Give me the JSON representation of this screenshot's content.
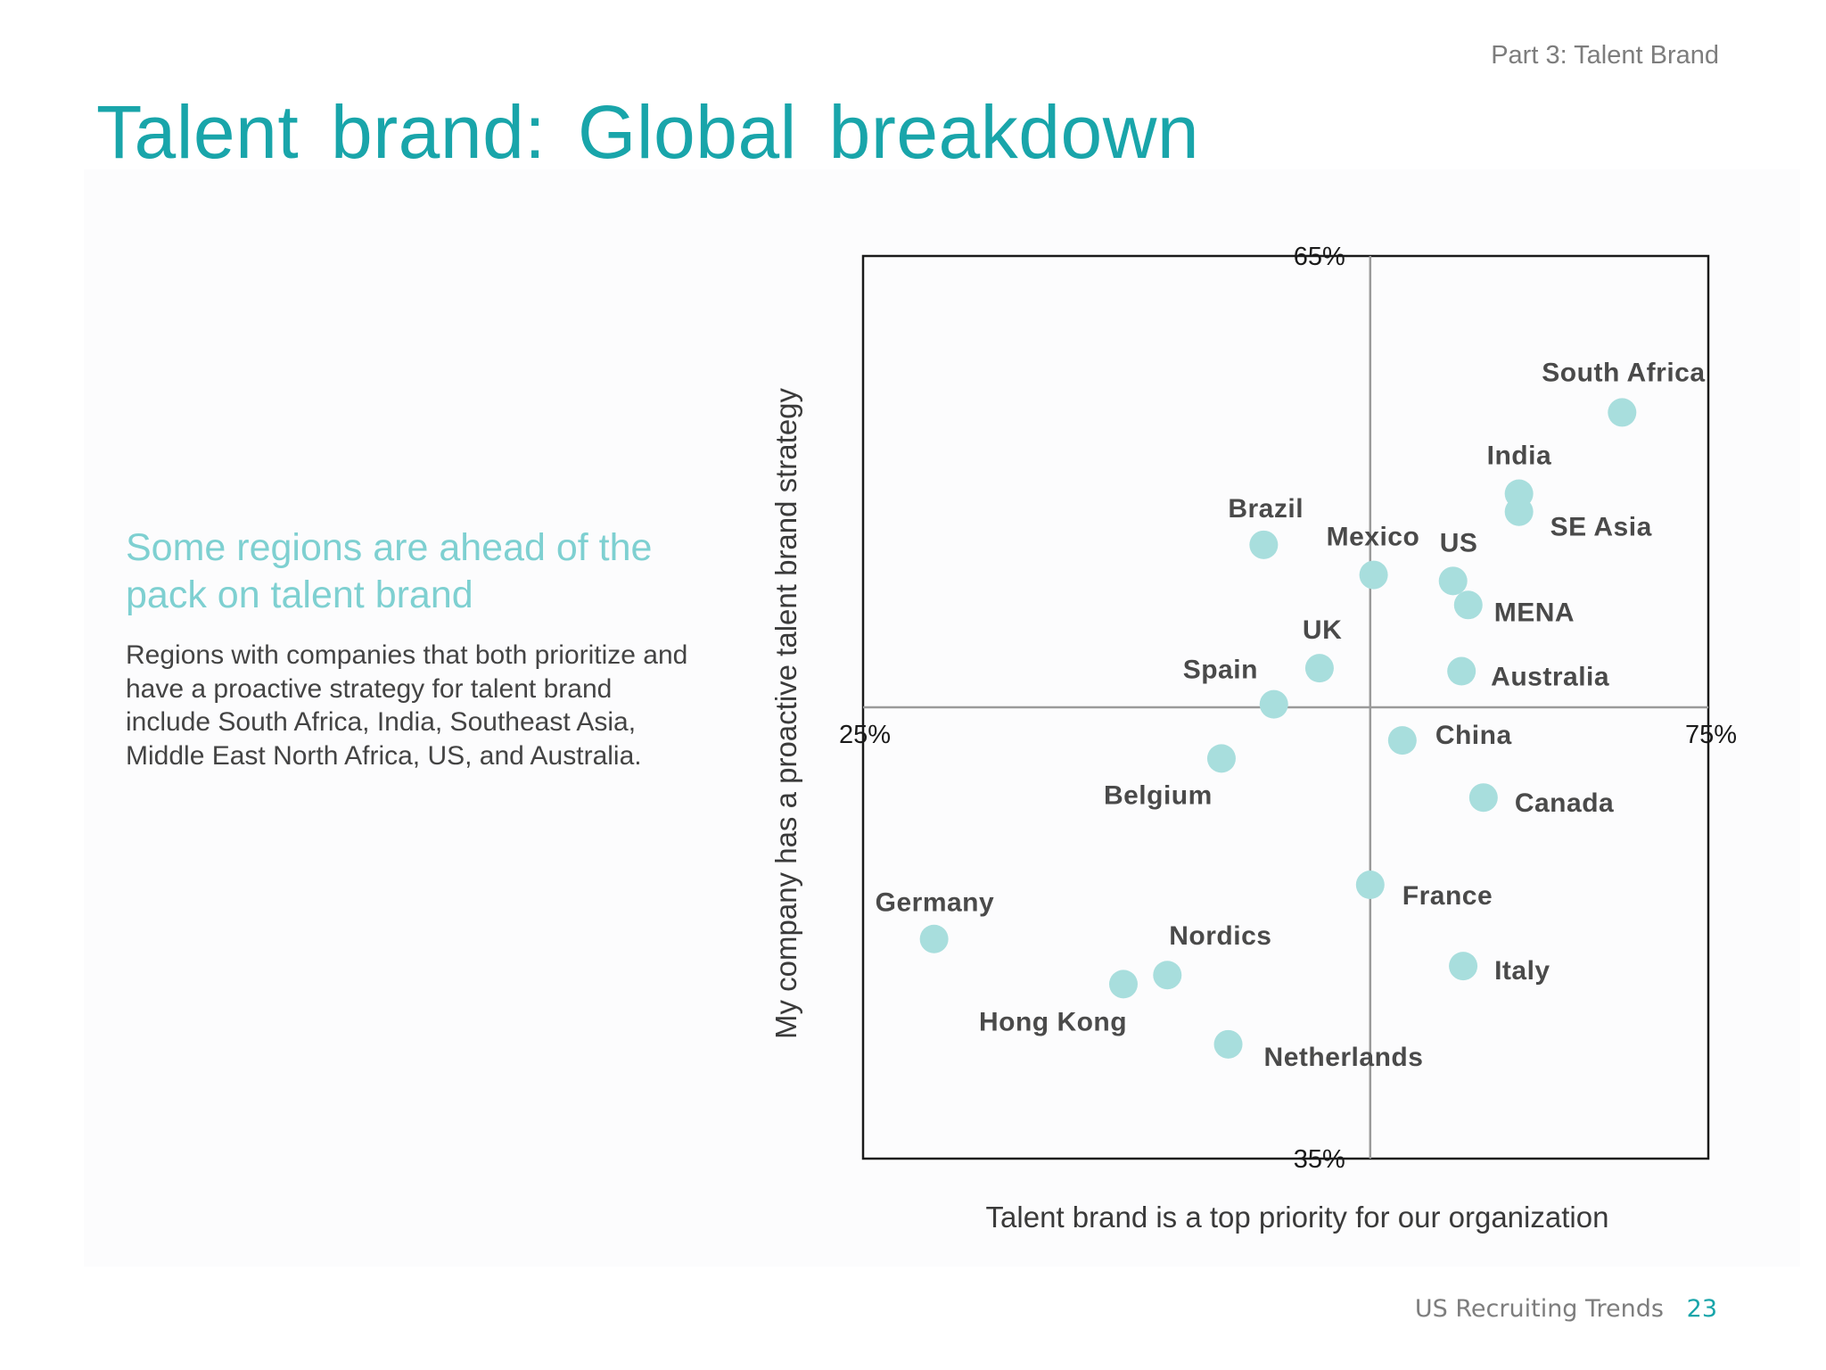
{
  "header": {
    "section_label": "Part 3: Talent Brand",
    "title": "Talent brand: Global breakdown"
  },
  "sidebar_text": {
    "heading": "Some regions are ahead of the pack on talent brand",
    "body": "Regions with companies that both prioritize and have a proactive strategy for talent brand include South Africa, India, Southeast Asia, Middle East North Africa, US, and Australia."
  },
  "footer": {
    "source": "US Recruiting Trends",
    "page_number": "23"
  },
  "colors": {
    "accent": "#19a5aa",
    "subheading": "#7ed0d1",
    "point": "#a8dedd"
  },
  "chart_data": {
    "type": "scatter",
    "xlabel": "Talent brand is a top priority for our organization",
    "ylabel": "My company has a proactive talent brand strategy",
    "xlim": [
      25,
      75
    ],
    "ylim": [
      35,
      65
    ],
    "x_tick_labels": [
      "25%",
      "75%"
    ],
    "y_tick_labels": [
      "65%",
      "35%"
    ],
    "crosshair": {
      "x": 55,
      "y": 50
    },
    "grid": false,
    "points": [
      {
        "label": "South Africa",
        "x": 69.9,
        "y": 59.8
      },
      {
        "label": "India",
        "x": 63.8,
        "y": 57.1
      },
      {
        "label": "SE Asia",
        "x": 63.8,
        "y": 56.5
      },
      {
        "label": "Brazil",
        "x": 48.7,
        "y": 55.4
      },
      {
        "label": "Mexico",
        "x": 55.2,
        "y": 54.4
      },
      {
        "label": "US",
        "x": 59.9,
        "y": 54.2
      },
      {
        "label": "MENA",
        "x": 60.8,
        "y": 53.4
      },
      {
        "label": "UK",
        "x": 52.0,
        "y": 51.3
      },
      {
        "label": "Australia",
        "x": 60.4,
        "y": 51.2
      },
      {
        "label": "Spain",
        "x": 49.3,
        "y": 50.1
      },
      {
        "label": "China",
        "x": 56.9,
        "y": 48.9
      },
      {
        "label": "Belgium",
        "x": 46.2,
        "y": 48.3
      },
      {
        "label": "Canada",
        "x": 61.7,
        "y": 47.0
      },
      {
        "label": "France",
        "x": 55.0,
        "y": 44.1
      },
      {
        "label": "Germany",
        "x": 29.2,
        "y": 42.3
      },
      {
        "label": "Italy",
        "x": 60.5,
        "y": 41.4
      },
      {
        "label": "Nordics",
        "x": 43.0,
        "y": 41.1
      },
      {
        "label": "Hong Kong",
        "x": 40.4,
        "y": 40.8
      },
      {
        "label": "Netherlands",
        "x": 46.6,
        "y": 38.8
      }
    ]
  }
}
